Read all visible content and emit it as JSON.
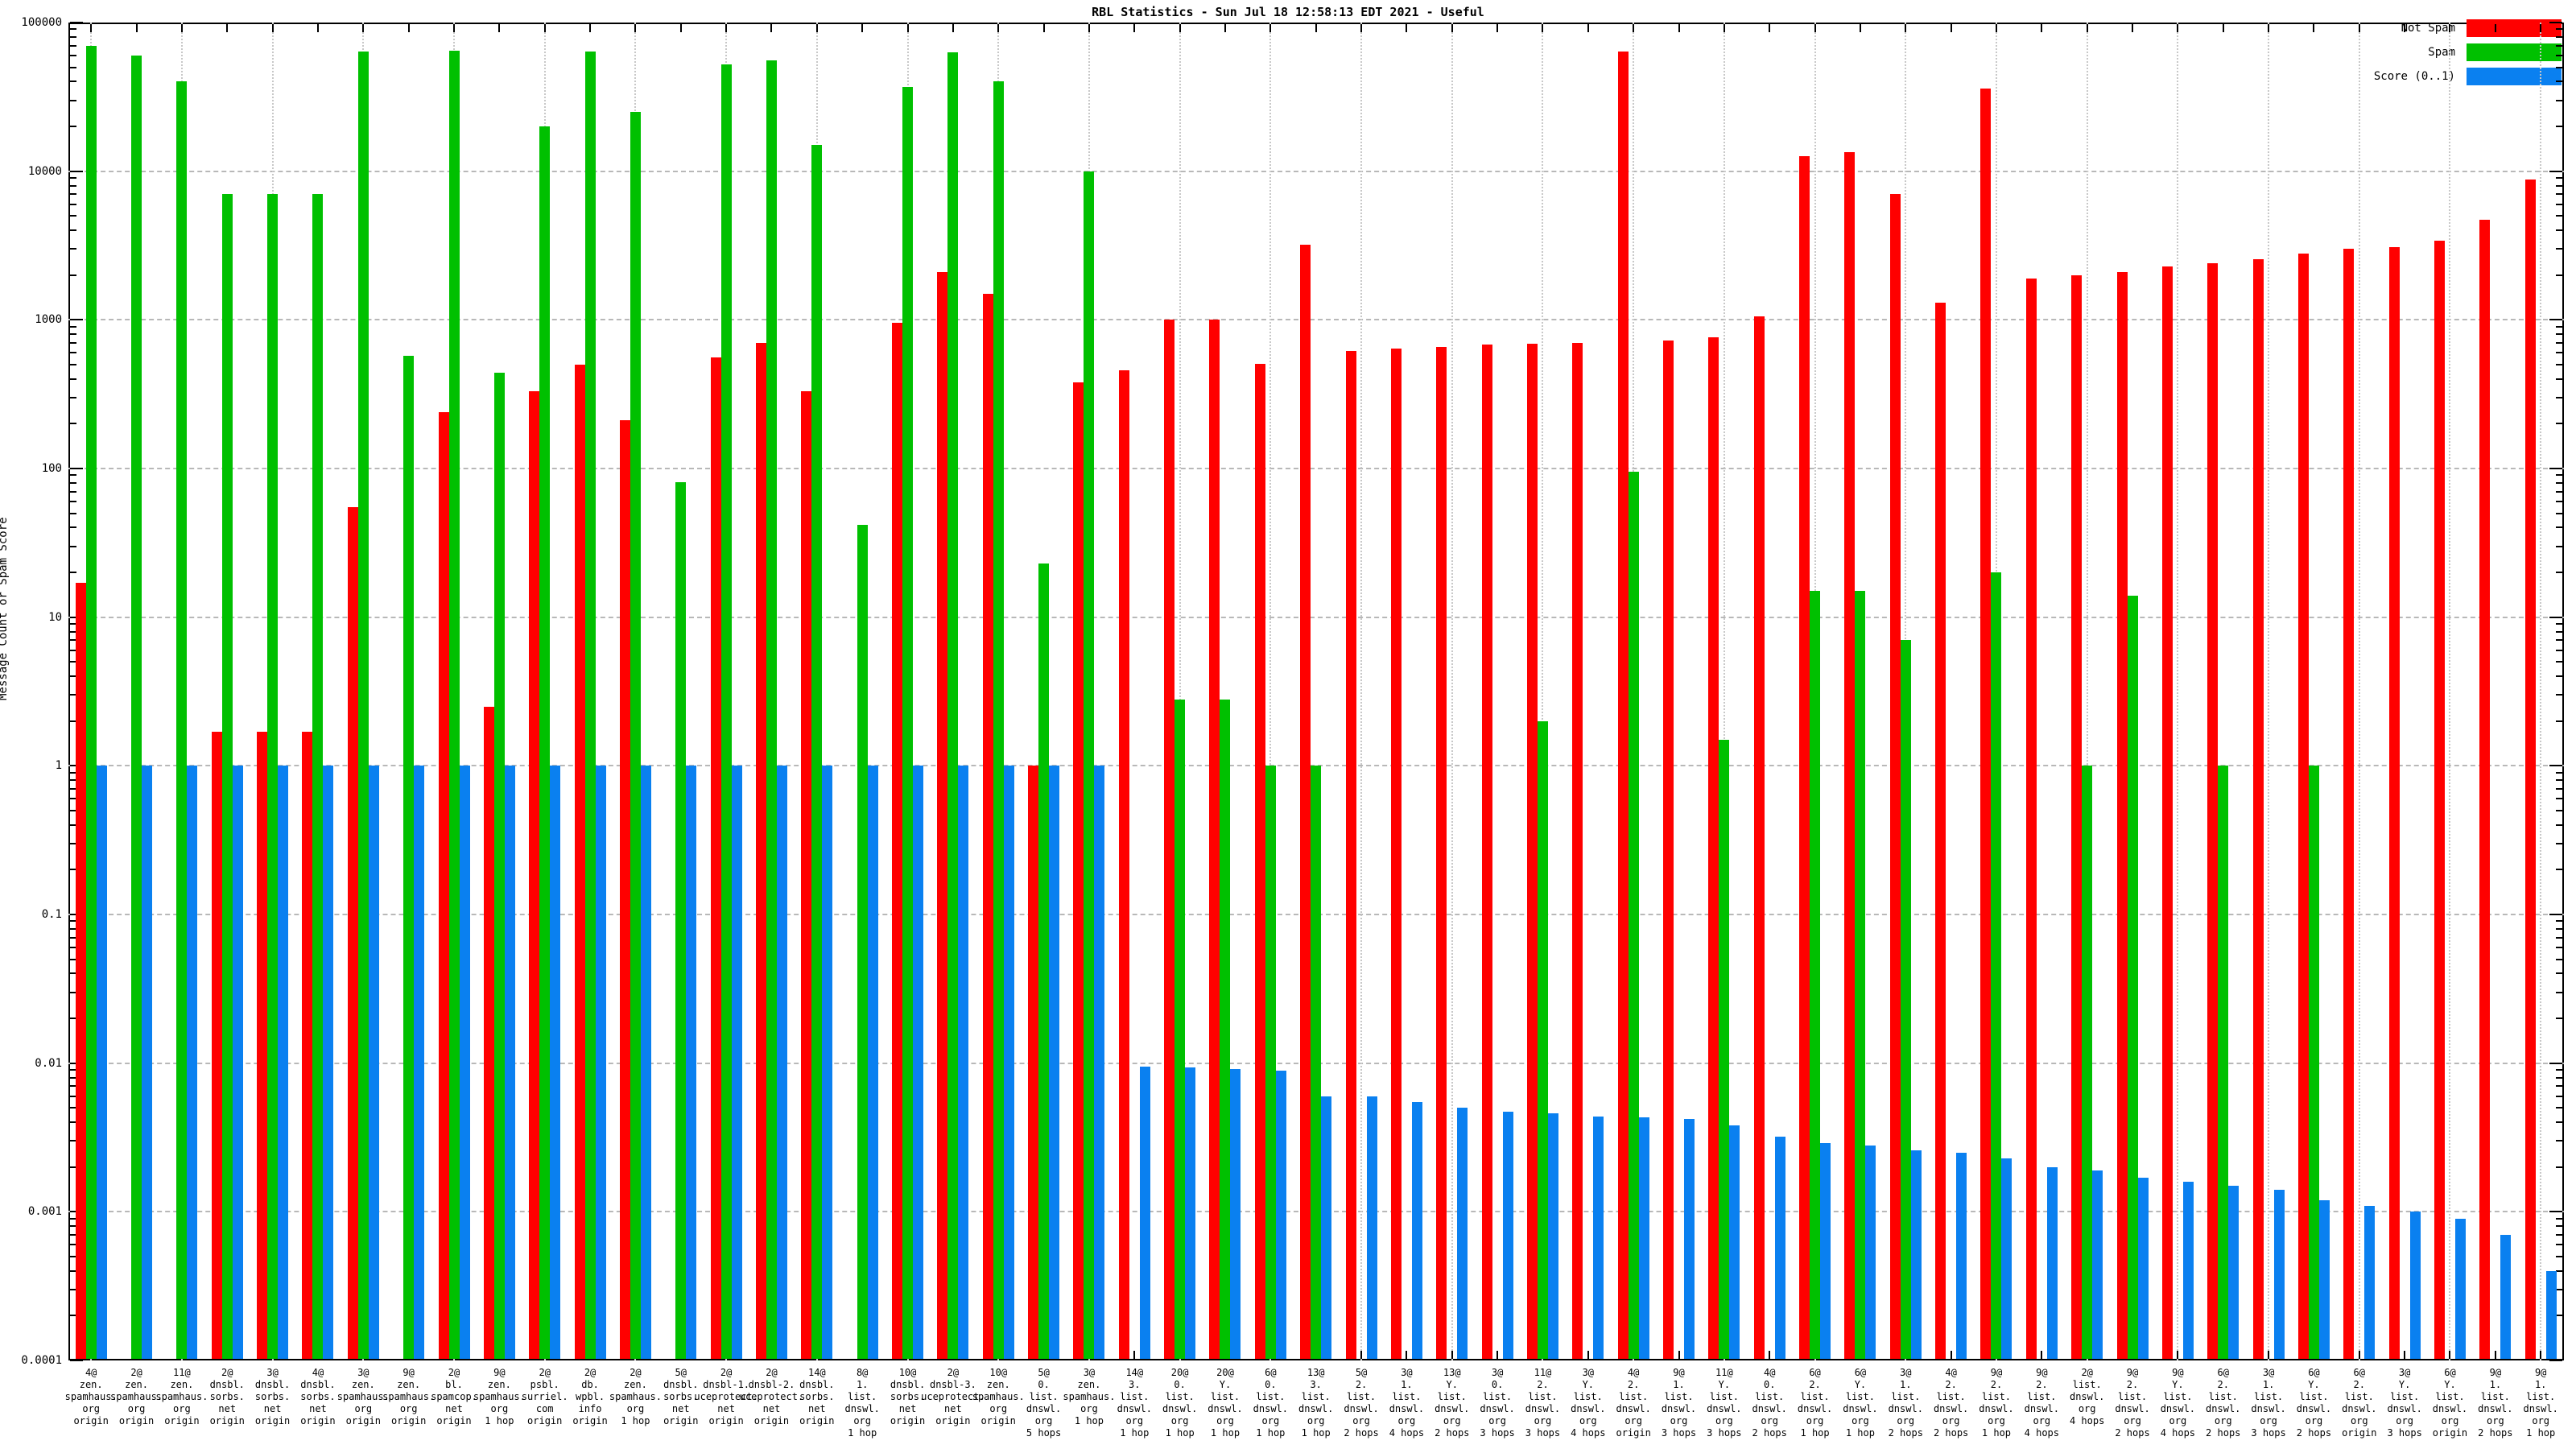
{
  "title": "RBL Statistics - Sun Jul 18 12:58:13 EDT 2021 - Useful",
  "y_axis": {
    "label": "Message Count or Spam Score",
    "ticks": [
      "100000",
      "10000",
      "1000",
      "100",
      "10",
      "1",
      "0.1",
      "0.01",
      "0.001",
      "0.0001"
    ]
  },
  "legend": [
    {
      "label": "Not Spam",
      "color": "#ff0000"
    },
    {
      "label": "Spam",
      "color": "#00c000"
    },
    {
      "label": "Score (0..1)",
      "color": "#0a80f0"
    }
  ],
  "chart_data": {
    "type": "bar",
    "log_scale": true,
    "ylim": [
      0.0001,
      100000
    ],
    "grid": true,
    "legend_position": "top-right",
    "series_names": [
      "Not Spam",
      "Spam",
      "Score (0..1)"
    ],
    "colors": {
      "not_spam": "#ff0000",
      "spam": "#00c000",
      "score": "#0a80f0"
    },
    "groups": [
      {
        "label": [
          "4@",
          "zen.",
          "spamhaus.",
          "org",
          "origin"
        ],
        "not_spam": 17,
        "spam": 70000,
        "score": 1
      },
      {
        "label": [
          "2@",
          "zen.",
          "spamhaus.",
          "org",
          "origin"
        ],
        "not_spam": null,
        "spam": 60000,
        "score": 1
      },
      {
        "label": [
          "11@",
          "zen.",
          "spamhaus.",
          "org",
          "origin"
        ],
        "not_spam": null,
        "spam": 40000,
        "score": 1
      },
      {
        "label": [
          "2@",
          "dnsbl.",
          "sorbs.",
          "net",
          "origin"
        ],
        "not_spam": 1.7,
        "spam": 7000,
        "score": 1
      },
      {
        "label": [
          "3@",
          "dnsbl.",
          "sorbs.",
          "net",
          "origin"
        ],
        "not_spam": 1.7,
        "spam": 7000,
        "score": 1
      },
      {
        "label": [
          "4@",
          "dnsbl.",
          "sorbs.",
          "net",
          "origin"
        ],
        "not_spam": 1.7,
        "spam": 7000,
        "score": 1
      },
      {
        "label": [
          "3@",
          "zen.",
          "spamhaus.",
          "org",
          "origin"
        ],
        "not_spam": 55,
        "spam": 64000,
        "score": 1
      },
      {
        "label": [
          "9@",
          "zen.",
          "spamhaus.",
          "org",
          "origin"
        ],
        "not_spam": null,
        "spam": 570,
        "score": 1
      },
      {
        "label": [
          "2@",
          "bl.",
          "spamcop.",
          "net",
          "origin"
        ],
        "not_spam": 240,
        "spam": 65000,
        "score": 1
      },
      {
        "label": [
          "9@",
          "zen.",
          "spamhaus.",
          "org",
          "1 hop"
        ],
        "not_spam": 2.5,
        "spam": 440,
        "score": 1
      },
      {
        "label": [
          "2@",
          "psbl.",
          "surriel.",
          "com",
          "origin"
        ],
        "not_spam": 330,
        "spam": 20000,
        "score": 1
      },
      {
        "label": [
          "2@",
          "db.",
          "wpbl.",
          "info",
          "origin"
        ],
        "not_spam": 500,
        "spam": 64000,
        "score": 1
      },
      {
        "label": [
          "2@",
          "zen.",
          "spamhaus.",
          "org",
          "1 hop"
        ],
        "not_spam": 210,
        "spam": 25000,
        "score": 1
      },
      {
        "label": [
          "5@",
          "dnsbl.",
          "sorbs.",
          "net",
          "origin"
        ],
        "not_spam": null,
        "spam": 81,
        "score": 1
      },
      {
        "label": [
          "2@",
          "dnsbl-1.",
          "uceprotect.",
          "net",
          "origin"
        ],
        "not_spam": 560,
        "spam": 52000,
        "score": 1
      },
      {
        "label": [
          "2@",
          "dnsbl-2.",
          "uceprotect.",
          "net",
          "origin"
        ],
        "not_spam": 700,
        "spam": 56000,
        "score": 1
      },
      {
        "label": [
          "14@",
          "dnsbl.",
          "sorbs.",
          "net",
          "origin"
        ],
        "not_spam": 330,
        "spam": 15000,
        "score": 1
      },
      {
        "label": [
          "8@",
          "1.",
          "list.",
          "dnswl.",
          "org",
          "1 hop"
        ],
        "not_spam": null,
        "spam": 42,
        "score": 1
      },
      {
        "label": [
          "10@",
          "dnsbl.",
          "sorbs.",
          "net",
          "origin"
        ],
        "not_spam": 950,
        "spam": 37000,
        "score": 1
      },
      {
        "label": [
          "2@",
          "dnsbl-3.",
          "uceprotect.",
          "net",
          "origin"
        ],
        "not_spam": 2100,
        "spam": 63000,
        "score": 1
      },
      {
        "label": [
          "10@",
          "zen.",
          "spamhaus.",
          "org",
          "origin"
        ],
        "not_spam": 1500,
        "spam": 40000,
        "score": 1
      },
      {
        "label": [
          "5@",
          "0.",
          "list.",
          "dnswl.",
          "org",
          "5 hops"
        ],
        "not_spam": 1,
        "spam": 23,
        "score": 1
      },
      {
        "label": [
          "3@",
          "zen.",
          "spamhaus.",
          "org",
          "1 hop"
        ],
        "not_spam": 380,
        "spam": 10000,
        "score": 1
      },
      {
        "label": [
          "14@",
          "3.",
          "list.",
          "dnswl.",
          "org",
          "1 hop"
        ],
        "not_spam": 460,
        "spam": null,
        "score": 0.0095
      },
      {
        "label": [
          "20@",
          "0.",
          "list.",
          "dnswl.",
          "org",
          "1 hop"
        ],
        "not_spam": 1000,
        "spam": 2.8,
        "score": 0.0093
      },
      {
        "label": [
          "20@",
          "Y.",
          "list.",
          "dnswl.",
          "org",
          "1 hop"
        ],
        "not_spam": 1000,
        "spam": 2.8,
        "score": 0.0091
      },
      {
        "label": [
          "6@",
          "0.",
          "list.",
          "dnswl.",
          "org",
          "1 hop"
        ],
        "not_spam": 505,
        "spam": 1,
        "score": 0.0089
      },
      {
        "label": [
          "13@",
          "3.",
          "list.",
          "dnswl.",
          "org",
          "1 hop"
        ],
        "not_spam": 3200,
        "spam": 1,
        "score": 0.006
      },
      {
        "label": [
          "5@",
          "2.",
          "list.",
          "dnswl.",
          "org",
          "2 hops"
        ],
        "not_spam": 620,
        "spam": null,
        "score": 0.006
      },
      {
        "label": [
          "3@",
          "1.",
          "list.",
          "dnswl.",
          "org",
          "4 hops"
        ],
        "not_spam": 640,
        "spam": null,
        "score": 0.0055
      },
      {
        "label": [
          "13@",
          "Y.",
          "list.",
          "dnswl.",
          "org",
          "2 hops"
        ],
        "not_spam": 660,
        "spam": null,
        "score": 0.005
      },
      {
        "label": [
          "3@",
          "0.",
          "list.",
          "dnswl.",
          "org",
          "3 hops"
        ],
        "not_spam": 680,
        "spam": null,
        "score": 0.0047
      },
      {
        "label": [
          "11@",
          "2.",
          "list.",
          "dnswl.",
          "org",
          "3 hops"
        ],
        "not_spam": 690,
        "spam": 2,
        "score": 0.0046
      },
      {
        "label": [
          "3@",
          "Y.",
          "list.",
          "dnswl.",
          "org",
          "4 hops"
        ],
        "not_spam": 700,
        "spam": null,
        "score": 0.0044
      },
      {
        "label": [
          "4@",
          "2.",
          "list.",
          "dnswl.",
          "org",
          "origin"
        ],
        "not_spam": 64000,
        "spam": 95,
        "score": 0.0043
      },
      {
        "label": [
          "9@",
          "1.",
          "list.",
          "dnswl.",
          "org",
          "3 hops"
        ],
        "not_spam": 730,
        "spam": null,
        "score": 0.0042
      },
      {
        "label": [
          "11@",
          "Y.",
          "list.",
          "dnswl.",
          "org",
          "3 hops"
        ],
        "not_spam": 760,
        "spam": 1.5,
        "score": 0.0038
      },
      {
        "label": [
          "4@",
          "0.",
          "list.",
          "dnswl.",
          "org",
          "2 hops"
        ],
        "not_spam": 1050,
        "spam": null,
        "score": 0.0032
      },
      {
        "label": [
          "6@",
          "2.",
          "list.",
          "dnswl.",
          "org",
          "1 hop"
        ],
        "not_spam": 12600,
        "spam": 15,
        "score": 0.0029
      },
      {
        "label": [
          "6@",
          "Y.",
          "list.",
          "dnswl.",
          "org",
          "1 hop"
        ],
        "not_spam": 13500,
        "spam": 15,
        "score": 0.0028
      },
      {
        "label": [
          "3@",
          "1.",
          "list.",
          "dnswl.",
          "org",
          "2 hops"
        ],
        "not_spam": 7000,
        "spam": 7,
        "score": 0.0026
      },
      {
        "label": [
          "4@",
          "2.",
          "list.",
          "dnswl.",
          "org",
          "2 hops"
        ],
        "not_spam": 1300,
        "spam": null,
        "score": 0.0025
      },
      {
        "label": [
          "9@",
          "2.",
          "list.",
          "dnswl.",
          "org",
          "1 hop"
        ],
        "not_spam": 36000,
        "spam": 20,
        "score": 0.0023
      },
      {
        "label": [
          "9@",
          "2.",
          "list.",
          "dnswl.",
          "org",
          "4 hops"
        ],
        "not_spam": 1900,
        "spam": null,
        "score": 0.002
      },
      {
        "label": [
          "2@",
          "list.",
          "dnswl.",
          "org",
          "4 hops"
        ],
        "not_spam": 2000,
        "spam": 1,
        "score": 0.0019
      },
      {
        "label": [
          "9@",
          "2.",
          "list.",
          "dnswl.",
          "org",
          "2 hops"
        ],
        "not_spam": 2100,
        "spam": 14,
        "score": 0.0017
      },
      {
        "label": [
          "9@",
          "Y.",
          "list.",
          "dnswl.",
          "org",
          "4 hops"
        ],
        "not_spam": 2300,
        "spam": null,
        "score": 0.0016
      },
      {
        "label": [
          "6@",
          "2.",
          "list.",
          "dnswl.",
          "org",
          "2 hops"
        ],
        "not_spam": 2400,
        "spam": 1,
        "score": 0.0015
      },
      {
        "label": [
          "3@",
          "1.",
          "list.",
          "dnswl.",
          "org",
          "3 hops"
        ],
        "not_spam": 2550,
        "spam": null,
        "score": 0.0014
      },
      {
        "label": [
          "6@",
          "Y.",
          "list.",
          "dnswl.",
          "org",
          "2 hops"
        ],
        "not_spam": 2800,
        "spam": 1,
        "score": 0.0012
      },
      {
        "label": [
          "6@",
          "2.",
          "list.",
          "dnswl.",
          "org",
          "origin"
        ],
        "not_spam": 3000,
        "spam": null,
        "score": 0.0011
      },
      {
        "label": [
          "3@",
          "Y.",
          "list.",
          "dnswl.",
          "org",
          "3 hops"
        ],
        "not_spam": 3100,
        "spam": null,
        "score": 0.001
      },
      {
        "label": [
          "6@",
          "Y.",
          "list.",
          "dnswl.",
          "org",
          "origin"
        ],
        "not_spam": 3400,
        "spam": null,
        "score": 0.0009
      },
      {
        "label": [
          "9@",
          "1.",
          "list.",
          "dnswl.",
          "org",
          "2 hops"
        ],
        "not_spam": 4700,
        "spam": null,
        "score": 0.0007
      },
      {
        "label": [
          "9@",
          "1.",
          "list.",
          "dnswl.",
          "org",
          "1 hop"
        ],
        "not_spam": 8800,
        "spam": null,
        "score": 0.0004
      }
    ]
  }
}
